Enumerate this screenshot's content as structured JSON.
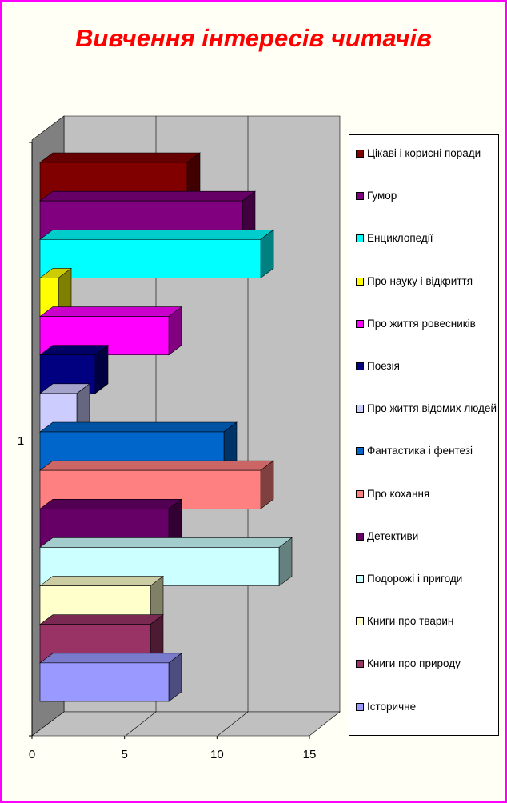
{
  "chart_data": {
    "type": "bar",
    "orientation": "horizontal",
    "style": "3d-clustered",
    "title": "Вивчення інтересів читачів",
    "title_color": "#FF0000",
    "categories": [
      "1"
    ],
    "xlim": [
      0,
      15
    ],
    "x_ticks": [
      "0",
      "5",
      "10",
      "15"
    ],
    "grid": true,
    "wall_color": "#C0C0C0",
    "legend_position": "right",
    "series": [
      {
        "name": "Цікаві і корисні поради",
        "value": 8,
        "color": "#800000"
      },
      {
        "name": "Гумор",
        "value": 11,
        "color": "#800080"
      },
      {
        "name": "Енциклопедії",
        "value": 12,
        "color": "#00FFFF"
      },
      {
        "name": "Про науку і відкриття",
        "value": 1,
        "color": "#FFFF00"
      },
      {
        "name": "Про життя ровесників",
        "value": 7,
        "color": "#FF00FF"
      },
      {
        "name": "Поезія",
        "value": 3,
        "color": "#000080"
      },
      {
        "name": "Про життя відомих людей",
        "value": 2,
        "color": "#CCCCFF"
      },
      {
        "name": "Фантастика і фентезі",
        "value": 10,
        "color": "#0066CC"
      },
      {
        "name": "Про кохання",
        "value": 12,
        "color": "#FF8080"
      },
      {
        "name": "Детективи",
        "value": 7,
        "color": "#660066"
      },
      {
        "name": "Подорожі і пригоди",
        "value": 13,
        "color": "#CCFFFF"
      },
      {
        "name": "Книги про тварин",
        "value": 6,
        "color": "#FFFFCC"
      },
      {
        "name": "Книги про природу",
        "value": 6,
        "color": "#993366"
      },
      {
        "name": "Історичне",
        "value": 7,
        "color": "#9999FF"
      }
    ]
  }
}
